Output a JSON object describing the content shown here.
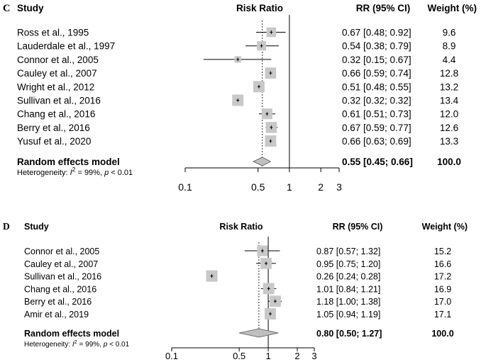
{
  "chart_data": [
    {
      "type": "forest",
      "panel_label": "C",
      "headers": {
        "study": "Study",
        "plot": "Risk Ratio",
        "rr": "RR (95% CI)",
        "weight": "Weight (%)"
      },
      "studies": [
        {
          "name": "Ross et al., 1995",
          "rr": 0.67,
          "lo": 0.48,
          "hi": 0.92,
          "rr_text": "0.67 [0.48; 0.92]",
          "weight": 9.6,
          "weight_text": "9.6"
        },
        {
          "name": "Lauderdale et al., 1997",
          "rr": 0.54,
          "lo": 0.38,
          "hi": 0.79,
          "rr_text": "0.54 [0.38; 0.79]",
          "weight": 8.9,
          "weight_text": "8.9"
        },
        {
          "name": "Connor et al., 2005",
          "rr": 0.32,
          "lo": 0.15,
          "hi": 0.67,
          "rr_text": "0.32 [0.15; 0.67]",
          "weight": 4.4,
          "weight_text": "4.4"
        },
        {
          "name": "Cauley et al., 2007",
          "rr": 0.66,
          "lo": 0.59,
          "hi": 0.74,
          "rr_text": "0.66 [0.59; 0.74]",
          "weight": 12.8,
          "weight_text": "12.8"
        },
        {
          "name": "Wright et al., 2012",
          "rr": 0.51,
          "lo": 0.48,
          "hi": 0.55,
          "rr_text": "0.51 [0.48; 0.55]",
          "weight": 13.2,
          "weight_text": "13.2"
        },
        {
          "name": "Sullivan et al., 2016",
          "rr": 0.32,
          "lo": 0.32,
          "hi": 0.32,
          "rr_text": "0.32 [0.32; 0.32]",
          "weight": 13.4,
          "weight_text": "13.4"
        },
        {
          "name": "Chang et al., 2016",
          "rr": 0.61,
          "lo": 0.51,
          "hi": 0.73,
          "rr_text": "0.61 [0.51; 0.73]",
          "weight": 12.0,
          "weight_text": "12.0"
        },
        {
          "name": "Berry et al., 2016",
          "rr": 0.67,
          "lo": 0.59,
          "hi": 0.77,
          "rr_text": "0.67 [0.59; 0.77]",
          "weight": 12.6,
          "weight_text": "12.6"
        },
        {
          "name": "Yusuf et al., 2020",
          "rr": 0.66,
          "lo": 0.63,
          "hi": 0.69,
          "rr_text": "0.66 [0.63; 0.69]",
          "weight": 13.3,
          "weight_text": "13.3"
        }
      ],
      "summary": {
        "name": "Random effects model",
        "rr": 0.55,
        "lo": 0.45,
        "hi": 0.66,
        "rr_text": "0.55 [0.45; 0.66]",
        "weight_text": "100.0"
      },
      "heterogeneity": {
        "prefix": "Heterogeneity: ",
        "symbol": "I",
        "sup": "2",
        "value": " = 99%, ",
        "p_symbol": "p",
        "p_value": " < 0.01"
      },
      "x_scale": "log",
      "xlim": [
        0.1,
        3
      ],
      "ticks": [
        0.1,
        0.5,
        1,
        2,
        3
      ],
      "tick_labels": [
        "0.1",
        "0.5",
        "1",
        "2",
        "3"
      ],
      "null_line": 1
    },
    {
      "type": "forest",
      "panel_label": "D",
      "headers": {
        "study": "Study",
        "plot": "Risk Ratio",
        "rr": "RR (95% CI)",
        "weight": "Weight (%)"
      },
      "studies": [
        {
          "name": "Connor et al., 2005",
          "rr": 0.87,
          "lo": 0.57,
          "hi": 1.32,
          "rr_text": "0.87 [0.57; 1.32]",
          "weight": 15.2,
          "weight_text": "15.2"
        },
        {
          "name": "Cauley et al., 2007",
          "rr": 0.95,
          "lo": 0.75,
          "hi": 1.2,
          "rr_text": "0.95 [0.75; 1.20]",
          "weight": 16.6,
          "weight_text": "16.6"
        },
        {
          "name": "Sullivan et al., 2016",
          "rr": 0.26,
          "lo": 0.24,
          "hi": 0.28,
          "rr_text": "0.26 [0.24; 0.28]",
          "weight": 17.2,
          "weight_text": "17.2"
        },
        {
          "name": "Chang et al., 2016",
          "rr": 1.01,
          "lo": 0.84,
          "hi": 1.21,
          "rr_text": "1.01 [0.84; 1.21]",
          "weight": 16.9,
          "weight_text": "16.9"
        },
        {
          "name": "Berry et al., 2016",
          "rr": 1.18,
          "lo": 1.0,
          "hi": 1.38,
          "rr_text": "1.18 [1.00; 1.38]",
          "weight": 17.0,
          "weight_text": "17.0"
        },
        {
          "name": "Amir et al., 2019",
          "rr": 1.05,
          "lo": 0.94,
          "hi": 1.19,
          "rr_text": "1.05 [0.94; 1.19]",
          "weight": 17.1,
          "weight_text": "17.1"
        }
      ],
      "summary": {
        "name": "Random effects model",
        "rr": 0.8,
        "lo": 0.5,
        "hi": 1.27,
        "rr_text": "0.80 [0.50; 1.27]",
        "weight_text": "100.0"
      },
      "heterogeneity": {
        "prefix": "Heterogeneity: ",
        "symbol": "I",
        "sup": "2",
        "value": " = 99%, ",
        "p_symbol": "p",
        "p_value": " < 0.01"
      },
      "x_scale": "log",
      "xlim": [
        0.1,
        3
      ],
      "ticks": [
        0.1,
        0.5,
        1,
        2,
        3
      ],
      "tick_labels": [
        "0.1",
        "0.5",
        "1",
        "2",
        "3"
      ],
      "null_line": 1
    }
  ],
  "colors": {
    "box": "#c8c8c8",
    "line": "#000000",
    "diamond": "#bfbfbf",
    "text": "#000000"
  }
}
